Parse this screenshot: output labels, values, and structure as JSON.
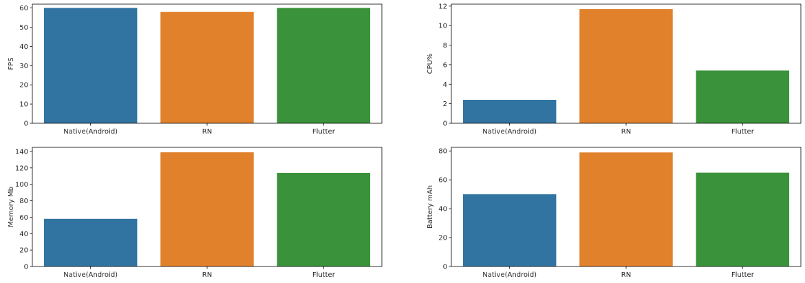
{
  "figure": {
    "layout": "2x2 grid of bar charts"
  },
  "chart_data": [
    {
      "type": "bar",
      "title": "",
      "xlabel": "",
      "ylabel": "FPS",
      "categories": [
        "Native(Android)",
        "RN",
        "Flutter"
      ],
      "values": [
        60,
        58,
        60
      ],
      "colors": [
        "#3274a1",
        "#e1812c",
        "#3a923a"
      ],
      "ylim": [
        0,
        62
      ],
      "yticks": [
        0,
        10,
        20,
        30,
        40,
        50,
        60
      ],
      "grid": false,
      "legend": "none"
    },
    {
      "type": "bar",
      "title": "",
      "xlabel": "",
      "ylabel": "CPU%",
      "categories": [
        "Native(Android)",
        "RN",
        "Flutter"
      ],
      "values": [
        2.4,
        11.7,
        5.4
      ],
      "colors": [
        "#3274a1",
        "#e1812c",
        "#3a923a"
      ],
      "ylim": [
        0,
        12.2
      ],
      "yticks": [
        0,
        2,
        4,
        6,
        8,
        10,
        12
      ],
      "grid": false,
      "legend": "none"
    },
    {
      "type": "bar",
      "title": "",
      "xlabel": "",
      "ylabel": "Memory Mb",
      "categories": [
        "Native(Android)",
        "RN",
        "Flutter"
      ],
      "values": [
        58,
        139,
        114
      ],
      "colors": [
        "#3274a1",
        "#e1812c",
        "#3a923a"
      ],
      "ylim": [
        0,
        145
      ],
      "yticks": [
        0,
        20,
        40,
        60,
        80,
        100,
        120,
        140
      ],
      "grid": false,
      "legend": "none"
    },
    {
      "type": "bar",
      "title": "",
      "xlabel": "",
      "ylabel": "Battery mAh",
      "categories": [
        "Native(Android)",
        "RN",
        "Flutter"
      ],
      "values": [
        50,
        79,
        65
      ],
      "colors": [
        "#3274a1",
        "#e1812c",
        "#3a923a"
      ],
      "ylim": [
        0,
        82.5
      ],
      "yticks": [
        0,
        20,
        40,
        60,
        80
      ],
      "grid": false,
      "legend": "none"
    }
  ]
}
